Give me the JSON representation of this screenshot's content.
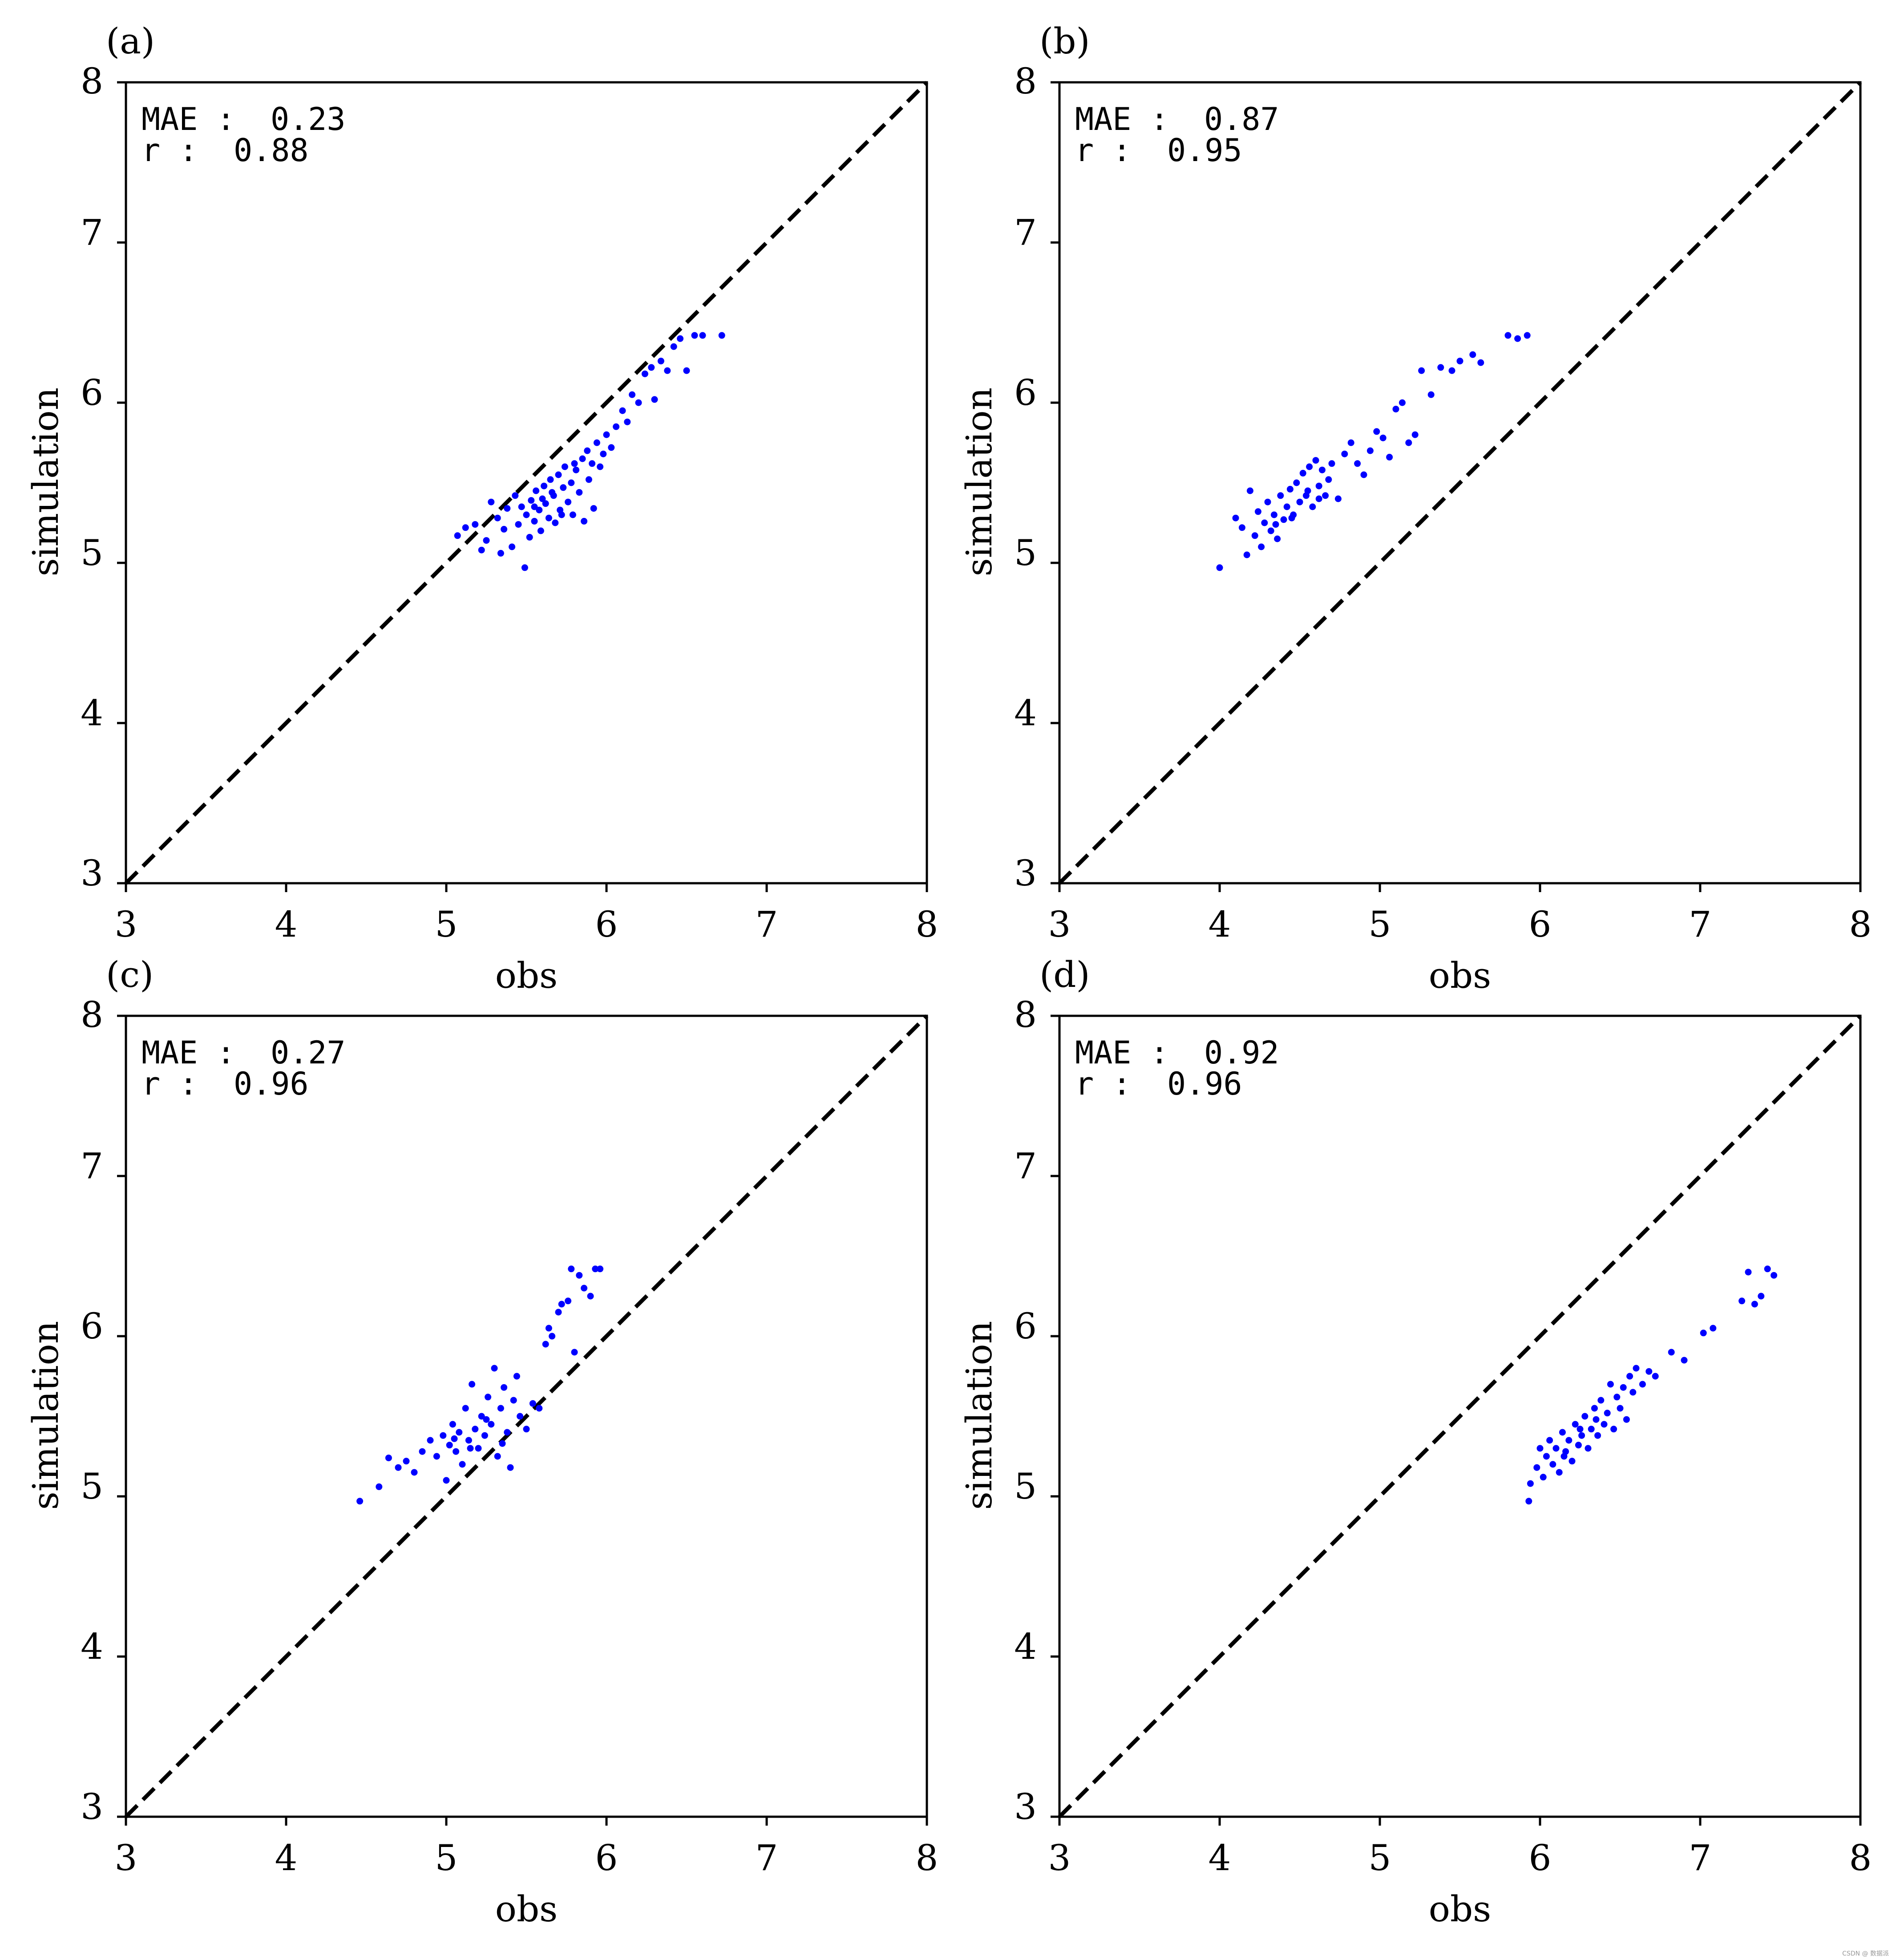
{
  "chart_data": [
    {
      "type": "scatter",
      "panel_label": "(a)",
      "xlabel": "obs",
      "ylabel": "simulation",
      "xlim": [
        3,
        8
      ],
      "ylim": [
        3,
        8
      ],
      "xticks": [
        "3",
        "4",
        "5",
        "6",
        "7",
        "8"
      ],
      "yticks": [
        "3",
        "4",
        "5",
        "6",
        "7",
        "8"
      ],
      "grid": false,
      "reference_line": "y = x (black dashed)",
      "point_color": "#0000ff",
      "stats": {
        "mae_label": "MAE :",
        "mae_value": "0.23",
        "r_label": "r :",
        "r_value": "0.88"
      },
      "points": [
        [
          5.07,
          5.17
        ],
        [
          5.12,
          5.22
        ],
        [
          5.18,
          5.24
        ],
        [
          5.22,
          5.08
        ],
        [
          5.25,
          5.14
        ],
        [
          5.28,
          5.38
        ],
        [
          5.32,
          5.28
        ],
        [
          5.34,
          5.06
        ],
        [
          5.36,
          5.21
        ],
        [
          5.38,
          5.34
        ],
        [
          5.41,
          5.1
        ],
        [
          5.43,
          5.42
        ],
        [
          5.45,
          5.24
        ],
        [
          5.47,
          5.35
        ],
        [
          5.49,
          4.97
        ],
        [
          5.5,
          5.3
        ],
        [
          5.52,
          5.16
        ],
        [
          5.53,
          5.39
        ],
        [
          5.55,
          5.26
        ],
        [
          5.56,
          5.45
        ],
        [
          5.58,
          5.33
        ],
        [
          5.59,
          5.2
        ],
        [
          5.61,
          5.48
        ],
        [
          5.62,
          5.37
        ],
        [
          5.64,
          5.28
        ],
        [
          5.65,
          5.52
        ],
        [
          5.67,
          5.42
        ],
        [
          5.68,
          5.25
        ],
        [
          5.7,
          5.55
        ],
        [
          5.71,
          5.33
        ],
        [
          5.73,
          5.47
        ],
        [
          5.74,
          5.6
        ],
        [
          5.76,
          5.38
        ],
        [
          5.78,
          5.5
        ],
        [
          5.79,
          5.3
        ],
        [
          5.81,
          5.58
        ],
        [
          5.83,
          5.44
        ],
        [
          5.85,
          5.65
        ],
        [
          5.86,
          5.26
        ],
        [
          5.88,
          5.7
        ],
        [
          5.89,
          5.52
        ],
        [
          5.91,
          5.62
        ],
        [
          5.92,
          5.34
        ],
        [
          5.94,
          5.75
        ],
        [
          5.96,
          5.6
        ],
        [
          5.98,
          5.68
        ],
        [
          6.0,
          5.8
        ],
        [
          6.03,
          5.72
        ],
        [
          6.06,
          5.85
        ],
        [
          6.1,
          5.95
        ],
        [
          6.13,
          5.88
        ],
        [
          6.16,
          6.05
        ],
        [
          6.2,
          6.0
        ],
        [
          6.24,
          6.18
        ],
        [
          6.28,
          6.22
        ],
        [
          6.3,
          6.02
        ],
        [
          6.34,
          6.26
        ],
        [
          6.38,
          6.2
        ],
        [
          6.42,
          6.35
        ],
        [
          6.46,
          6.4
        ],
        [
          6.5,
          6.2
        ],
        [
          6.55,
          6.42
        ],
        [
          6.6,
          6.42
        ],
        [
          6.72,
          6.42
        ],
        [
          5.6,
          5.4
        ],
        [
          5.72,
          5.3
        ],
        [
          5.55,
          5.35
        ],
        [
          5.66,
          5.44
        ],
        [
          5.8,
          5.62
        ]
      ]
    },
    {
      "type": "scatter",
      "panel_label": "(b)",
      "xlabel": "obs",
      "ylabel": "simulation",
      "xlim": [
        3,
        8
      ],
      "ylim": [
        3,
        8
      ],
      "xticks": [
        "3",
        "4",
        "5",
        "6",
        "7",
        "8"
      ],
      "yticks": [
        "3",
        "4",
        "5",
        "6",
        "7",
        "8"
      ],
      "grid": false,
      "reference_line": "y = x (black dashed)",
      "point_color": "#0000ff",
      "stats": {
        "mae_label": "MAE :",
        "mae_value": "0.87",
        "r_label": "r :",
        "r_value": "0.95"
      },
      "points": [
        [
          4.0,
          4.97
        ],
        [
          4.1,
          5.28
        ],
        [
          4.14,
          5.22
        ],
        [
          4.17,
          5.05
        ],
        [
          4.19,
          5.45
        ],
        [
          4.22,
          5.17
        ],
        [
          4.24,
          5.32
        ],
        [
          4.26,
          5.1
        ],
        [
          4.28,
          5.25
        ],
        [
          4.3,
          5.38
        ],
        [
          4.32,
          5.2
        ],
        [
          4.34,
          5.3
        ],
        [
          4.36,
          5.15
        ],
        [
          4.38,
          5.42
        ],
        [
          4.4,
          5.27
        ],
        [
          4.42,
          5.35
        ],
        [
          4.44,
          5.46
        ],
        [
          4.46,
          5.3
        ],
        [
          4.48,
          5.5
        ],
        [
          4.5,
          5.38
        ],
        [
          4.52,
          5.56
        ],
        [
          4.54,
          5.42
        ],
        [
          4.56,
          5.6
        ],
        [
          4.58,
          5.35
        ],
        [
          4.6,
          5.64
        ],
        [
          4.62,
          5.48
        ],
        [
          4.64,
          5.58
        ],
        [
          4.66,
          5.42
        ],
        [
          4.68,
          5.52
        ],
        [
          4.7,
          5.62
        ],
        [
          4.74,
          5.4
        ],
        [
          4.78,
          5.68
        ],
        [
          4.82,
          5.75
        ],
        [
          4.86,
          5.62
        ],
        [
          4.9,
          5.55
        ],
        [
          4.94,
          5.7
        ],
        [
          4.98,
          5.82
        ],
        [
          5.02,
          5.78
        ],
        [
          5.06,
          5.66
        ],
        [
          5.1,
          5.96
        ],
        [
          5.14,
          6.0
        ],
        [
          5.18,
          5.75
        ],
        [
          5.22,
          5.8
        ],
        [
          5.26,
          6.2
        ],
        [
          5.32,
          6.05
        ],
        [
          5.38,
          6.22
        ],
        [
          5.45,
          6.2
        ],
        [
          5.5,
          6.26
        ],
        [
          5.58,
          6.3
        ],
        [
          5.63,
          6.25
        ],
        [
          5.8,
          6.42
        ],
        [
          5.86,
          6.4
        ],
        [
          5.92,
          6.42
        ],
        [
          4.45,
          5.28
        ],
        [
          4.55,
          5.45
        ],
        [
          4.35,
          5.24
        ],
        [
          4.62,
          5.4
        ]
      ]
    },
    {
      "type": "scatter",
      "panel_label": "(c)",
      "xlabel": "obs",
      "ylabel": "simulation",
      "xlim": [
        3,
        8
      ],
      "ylim": [
        3,
        8
      ],
      "xticks": [
        "3",
        "4",
        "5",
        "6",
        "7",
        "8"
      ],
      "yticks": [
        "3",
        "4",
        "5",
        "6",
        "7",
        "8"
      ],
      "grid": false,
      "reference_line": "y = x (black dashed)",
      "point_color": "#0000ff",
      "stats": {
        "mae_label": "MAE :",
        "mae_value": "0.27",
        "r_label": "r :",
        "r_value": "0.96"
      },
      "points": [
        [
          4.46,
          4.97
        ],
        [
          4.58,
          5.06
        ],
        [
          4.64,
          5.24
        ],
        [
          4.7,
          5.18
        ],
        [
          4.75,
          5.22
        ],
        [
          4.8,
          5.15
        ],
        [
          4.85,
          5.28
        ],
        [
          4.9,
          5.35
        ],
        [
          4.94,
          5.25
        ],
        [
          4.98,
          5.38
        ],
        [
          5.0,
          5.1
        ],
        [
          5.02,
          5.32
        ],
        [
          5.04,
          5.45
        ],
        [
          5.06,
          5.28
        ],
        [
          5.08,
          5.4
        ],
        [
          5.1,
          5.2
        ],
        [
          5.12,
          5.55
        ],
        [
          5.14,
          5.35
        ],
        [
          5.16,
          5.7
        ],
        [
          5.18,
          5.42
        ],
        [
          5.2,
          5.3
        ],
        [
          5.22,
          5.5
        ],
        [
          5.24,
          5.38
        ],
        [
          5.26,
          5.62
        ],
        [
          5.28,
          5.45
        ],
        [
          5.3,
          5.8
        ],
        [
          5.32,
          5.25
        ],
        [
          5.34,
          5.55
        ],
        [
          5.36,
          5.68
        ],
        [
          5.38,
          5.4
        ],
        [
          5.4,
          5.18
        ],
        [
          5.42,
          5.6
        ],
        [
          5.44,
          5.75
        ],
        [
          5.46,
          5.5
        ],
        [
          5.5,
          5.42
        ],
        [
          5.54,
          5.58
        ],
        [
          5.58,
          5.55
        ],
        [
          5.62,
          5.95
        ],
        [
          5.64,
          6.05
        ],
        [
          5.66,
          6.0
        ],
        [
          5.7,
          6.15
        ],
        [
          5.72,
          6.2
        ],
        [
          5.76,
          6.22
        ],
        [
          5.78,
          6.42
        ],
        [
          5.8,
          5.9
        ],
        [
          5.83,
          6.38
        ],
        [
          5.86,
          6.3
        ],
        [
          5.9,
          6.25
        ],
        [
          5.93,
          6.42
        ],
        [
          5.96,
          6.42
        ],
        [
          5.15,
          5.3
        ],
        [
          5.25,
          5.48
        ],
        [
          5.05,
          5.36
        ],
        [
          5.35,
          5.33
        ]
      ]
    },
    {
      "type": "scatter",
      "panel_label": "(d)",
      "xlabel": "obs",
      "ylabel": "simulation",
      "xlim": [
        3,
        8
      ],
      "ylim": [
        3,
        8
      ],
      "xticks": [
        "3",
        "4",
        "5",
        "6",
        "7",
        "8"
      ],
      "yticks": [
        "3",
        "4",
        "5",
        "6",
        "7",
        "8"
      ],
      "grid": false,
      "reference_line": "y = x (black dashed)",
      "point_color": "#0000ff",
      "stats": {
        "mae_label": "MAE :",
        "mae_value": "0.92",
        "r_label": "r :",
        "r_value": "0.96"
      },
      "points": [
        [
          5.93,
          4.97
        ],
        [
          5.94,
          5.08
        ],
        [
          5.98,
          5.18
        ],
        [
          6.0,
          5.3
        ],
        [
          6.02,
          5.12
        ],
        [
          6.04,
          5.25
        ],
        [
          6.06,
          5.35
        ],
        [
          6.08,
          5.2
        ],
        [
          6.1,
          5.3
        ],
        [
          6.12,
          5.15
        ],
        [
          6.14,
          5.4
        ],
        [
          6.16,
          5.28
        ],
        [
          6.18,
          5.35
        ],
        [
          6.2,
          5.22
        ],
        [
          6.22,
          5.45
        ],
        [
          6.24,
          5.32
        ],
        [
          6.26,
          5.38
        ],
        [
          6.28,
          5.5
        ],
        [
          6.3,
          5.3
        ],
        [
          6.32,
          5.42
        ],
        [
          6.34,
          5.55
        ],
        [
          6.36,
          5.38
        ],
        [
          6.38,
          5.6
        ],
        [
          6.4,
          5.45
        ],
        [
          6.42,
          5.52
        ],
        [
          6.44,
          5.7
        ],
        [
          6.46,
          5.42
        ],
        [
          6.48,
          5.62
        ],
        [
          6.5,
          5.55
        ],
        [
          6.52,
          5.68
        ],
        [
          6.54,
          5.48
        ],
        [
          6.56,
          5.75
        ],
        [
          6.58,
          5.65
        ],
        [
          6.6,
          5.8
        ],
        [
          6.64,
          5.7
        ],
        [
          6.68,
          5.78
        ],
        [
          6.72,
          5.75
        ],
        [
          6.82,
          5.9
        ],
        [
          6.9,
          5.85
        ],
        [
          7.02,
          6.02
        ],
        [
          7.08,
          6.05
        ],
        [
          7.26,
          6.22
        ],
        [
          7.3,
          6.4
        ],
        [
          7.34,
          6.2
        ],
        [
          7.38,
          6.25
        ],
        [
          7.42,
          6.42
        ],
        [
          7.46,
          6.38
        ],
        [
          6.25,
          5.42
        ],
        [
          6.35,
          5.48
        ],
        [
          6.15,
          5.25
        ]
      ]
    }
  ],
  "watermark": "CSDN @ 数据派"
}
